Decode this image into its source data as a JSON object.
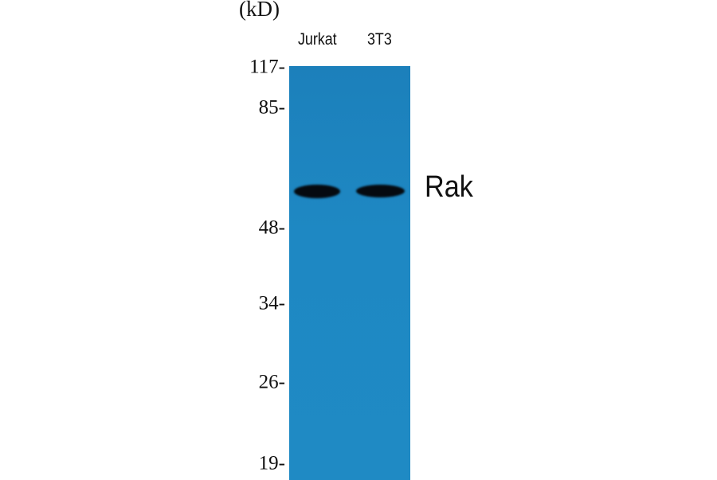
{
  "unit_label": "(kD)",
  "lanes": [
    {
      "label": "Jurkat"
    },
    {
      "label": "3T3"
    }
  ],
  "markers": [
    "117-",
    "85-",
    "48-",
    "34-",
    "26-",
    "19-"
  ],
  "target_label": "Rak",
  "colors": {
    "membrane": "#1e86c0",
    "band": "#050a10"
  }
}
